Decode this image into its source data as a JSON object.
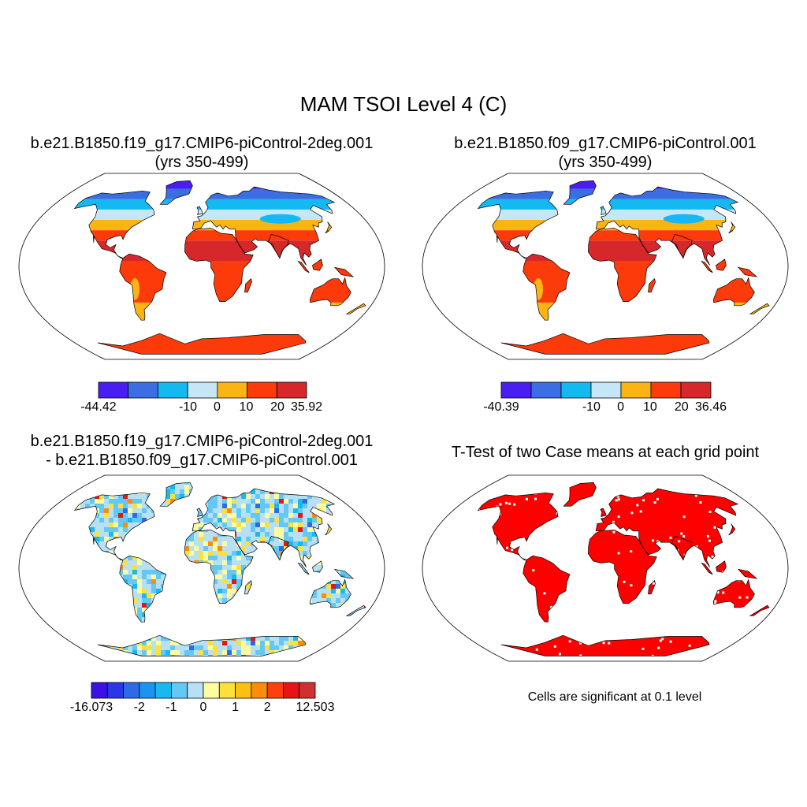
{
  "figure": {
    "title": "MAM TSOI Level 4 (C)",
    "panels": [
      {
        "id": "case1",
        "title_line1": "b.e21.B1850.f19_g17.CMIP6-piControl-2deg.001",
        "title_line2": "(yrs 350-499)",
        "field": "warm",
        "colorbar": {
          "colors": [
            "#4a1ef0",
            "#3a6ee2",
            "#14b9f2",
            "#c4e6f6",
            "#fcb314",
            "#fc3a0a",
            "#d6282a"
          ],
          "labels": [
            "-44.42",
            "-10",
            "0",
            "10",
            "20",
            "35.92"
          ]
        }
      },
      {
        "id": "case2",
        "title_line1": "b.e21.B1850.f09_g17.CMIP6-piControl.001",
        "title_line2": "(yrs 350-499)",
        "field": "warm",
        "colorbar": {
          "colors": [
            "#4a1ef0",
            "#3a6ee2",
            "#14b9f2",
            "#c4e6f6",
            "#fcb314",
            "#fc3a0a",
            "#d6282a"
          ],
          "labels": [
            "-40.39",
            "-10",
            "0",
            "10",
            "20",
            "36.46"
          ]
        }
      },
      {
        "id": "difference",
        "title_line1": "b.e21.B1850.f19_g17.CMIP6-piControl-2deg.001",
        "title_line2": "- b.e21.B1850.f09_g17.CMIP6-piControl.001",
        "field": "diff",
        "colorbar": {
          "colors": [
            "#3b12e6",
            "#2b37e6",
            "#2f6ae6",
            "#1a94f0",
            "#18b8f0",
            "#64c8f4",
            "#b8e0f4",
            "#fcfca0",
            "#fce03c",
            "#fcc014",
            "#fc8c0c",
            "#fc4010",
            "#e61414",
            "#d03030"
          ],
          "labels": [
            "-16.073",
            "-2",
            "-1",
            "0",
            "1",
            "2",
            "12.503"
          ]
        }
      },
      {
        "id": "ttest",
        "title_line1": "T-Test of two Case means at each grid point",
        "title_line2": "",
        "field": "sig",
        "note": "Cells are significant at 0.1 level"
      }
    ]
  },
  "colors": {
    "land_warm_tropics": "#d6282a",
    "land_warm": "#fc3a0a",
    "land_mild": "#fcb314",
    "land_cool": "#c4e6f6",
    "land_cold": "#14b9f2",
    "land_colder": "#3a6ee2",
    "land_coldest": "#4a1ef0",
    "significant": "#ff0000",
    "coastline": "#000000"
  }
}
